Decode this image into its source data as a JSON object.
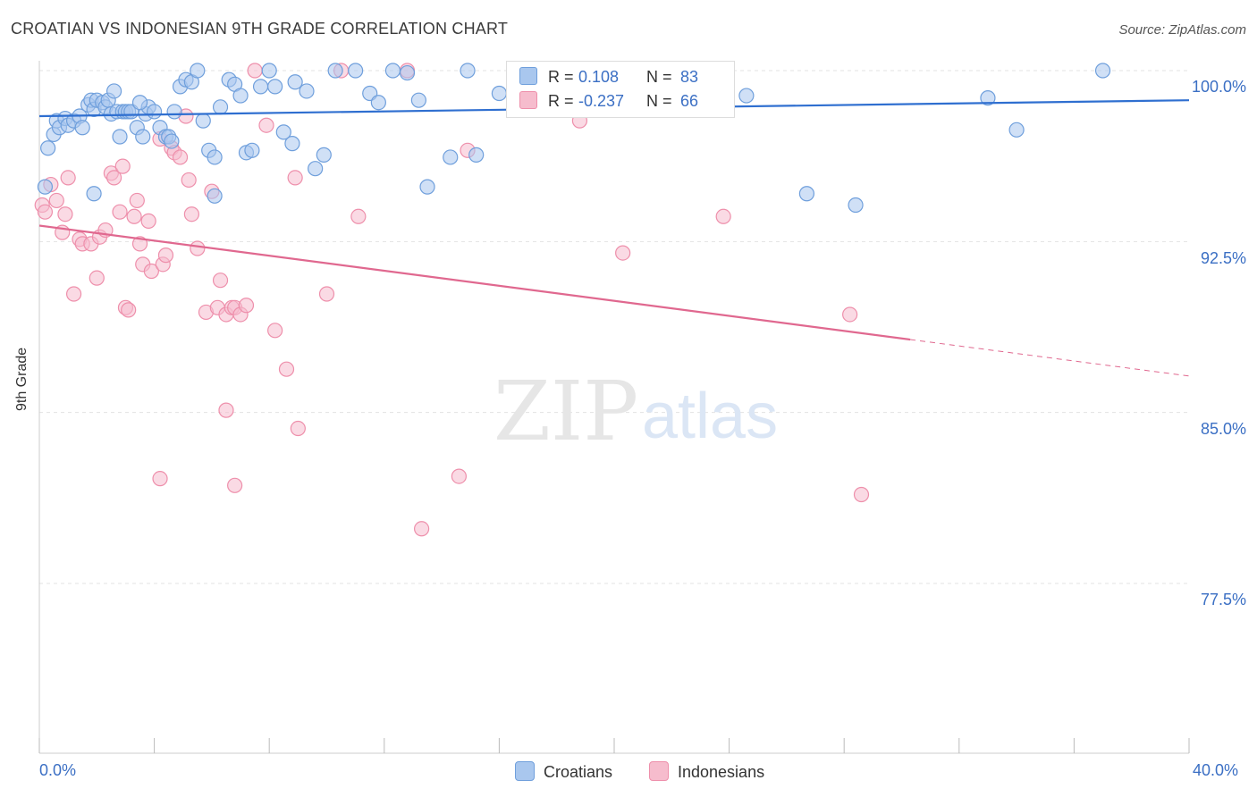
{
  "title": "CROATIAN VS INDONESIAN 9TH GRADE CORRELATION CHART",
  "source": "Source: ZipAtlas.com",
  "watermark": {
    "zip": "ZIP",
    "atlas": "atlas"
  },
  "colors": {
    "blue_fill": "#a9c7ee",
    "blue_stroke": "#6f9fdc",
    "blue_line": "#2f6fd0",
    "pink_fill": "#f6bccd",
    "pink_stroke": "#ee8fab",
    "pink_line": "#e0688f",
    "accent_text": "#3b6fc4",
    "grid": "#e3e3e3"
  },
  "legend": {
    "rows": [
      {
        "r_label": "R =",
        "r_value": "0.108",
        "n_label": "N =",
        "n_value": "83",
        "color": "#a9c7ee"
      },
      {
        "r_label": "R =",
        "r_value": "-0.237",
        "n_label": "N =",
        "n_value": "66",
        "color": "#f6bccd"
      }
    ]
  },
  "bottom_legend": [
    {
      "label": "Croatians",
      "color": "#a9c7ee"
    },
    {
      "label": "Indonesians",
      "color": "#f6bccd"
    }
  ],
  "chart_data": {
    "type": "scatter",
    "title": "CROATIAN VS INDONESIAN 9TH GRADE CORRELATION CHART",
    "xlabel": "",
    "ylabel": "9th Grade",
    "xlim": [
      0,
      40
    ],
    "ylim": [
      70.5,
      101.5
    ],
    "x_tick_labels": [
      {
        "value": 0,
        "label": "0.0%"
      },
      {
        "value": 40,
        "label": "40.0%"
      }
    ],
    "y_tick_labels": [
      {
        "value": 100,
        "label": "100.0%"
      },
      {
        "value": 92.5,
        "label": "92.5%"
      },
      {
        "value": 85,
        "label": "85.0%"
      },
      {
        "value": 77.5,
        "label": "77.5%"
      }
    ],
    "grid": true,
    "legend_position": "top-center",
    "series": [
      {
        "name": "Croatians",
        "trend": {
          "x": [
            0,
            40
          ],
          "y": [
            98.0,
            98.7
          ]
        },
        "points": [
          [
            0.3,
            96.6
          ],
          [
            0.5,
            97.2
          ],
          [
            0.6,
            97.8
          ],
          [
            0.7,
            97.5
          ],
          [
            0.9,
            97.9
          ],
          [
            1.0,
            97.6
          ],
          [
            1.2,
            97.8
          ],
          [
            1.4,
            98.0
          ],
          [
            1.5,
            97.5
          ],
          [
            1.7,
            98.5
          ],
          [
            1.8,
            98.7
          ],
          [
            1.9,
            98.3
          ],
          [
            2.0,
            98.7
          ],
          [
            2.2,
            98.6
          ],
          [
            2.3,
            98.4
          ],
          [
            2.4,
            98.7
          ],
          [
            2.5,
            98.1
          ],
          [
            2.6,
            99.1
          ],
          [
            2.7,
            98.2
          ],
          [
            2.8,
            97.1
          ],
          [
            2.9,
            98.2
          ],
          [
            3.0,
            98.2
          ],
          [
            3.1,
            98.2
          ],
          [
            3.2,
            98.2
          ],
          [
            3.4,
            97.5
          ],
          [
            3.6,
            97.1
          ],
          [
            3.7,
            98.1
          ],
          [
            3.8,
            98.4
          ],
          [
            4.0,
            98.2
          ],
          [
            4.2,
            97.5
          ],
          [
            4.4,
            97.1
          ],
          [
            4.5,
            97.1
          ],
          [
            4.7,
            98.2
          ],
          [
            4.9,
            99.3
          ],
          [
            5.1,
            99.6
          ],
          [
            5.3,
            99.5
          ],
          [
            5.5,
            100.0
          ],
          [
            5.7,
            97.8
          ],
          [
            5.9,
            96.5
          ],
          [
            6.1,
            96.2
          ],
          [
            6.3,
            98.4
          ],
          [
            6.6,
            99.6
          ],
          [
            6.8,
            99.4
          ],
          [
            7.0,
            98.9
          ],
          [
            7.2,
            96.4
          ],
          [
            7.4,
            96.5
          ],
          [
            7.7,
            99.3
          ],
          [
            8.0,
            100.0
          ],
          [
            8.2,
            99.3
          ],
          [
            8.5,
            97.3
          ],
          [
            8.9,
            99.5
          ],
          [
            9.3,
            99.1
          ],
          [
            9.6,
            95.7
          ],
          [
            9.9,
            96.3
          ],
          [
            10.3,
            100.0
          ],
          [
            11.0,
            100.0
          ],
          [
            11.5,
            99.0
          ],
          [
            11.8,
            98.6
          ],
          [
            12.3,
            100.0
          ],
          [
            12.8,
            99.9
          ],
          [
            13.2,
            98.7
          ],
          [
            13.5,
            94.9
          ],
          [
            14.3,
            96.2
          ],
          [
            14.9,
            100.0
          ],
          [
            15.2,
            96.3
          ],
          [
            16.0,
            99.0
          ],
          [
            17.0,
            99.2
          ],
          [
            18.0,
            98.9
          ],
          [
            19.0,
            99.1
          ],
          [
            20.0,
            100.0
          ],
          [
            22.0,
            98.6
          ],
          [
            24.6,
            98.9
          ],
          [
            26.7,
            94.6
          ],
          [
            28.4,
            94.1
          ],
          [
            33.0,
            98.8
          ],
          [
            34.0,
            97.4
          ],
          [
            37.0,
            100.0
          ],
          [
            0.2,
            94.9
          ],
          [
            1.9,
            94.6
          ],
          [
            6.1,
            94.5
          ],
          [
            8.8,
            96.8
          ],
          [
            4.6,
            96.9
          ],
          [
            3.5,
            98.6
          ]
        ]
      },
      {
        "name": "Indonesians",
        "trend": {
          "x": [
            0,
            30.3
          ],
          "y": [
            93.2,
            88.2
          ],
          "dashed_to": {
            "x": 40,
            "y": 86.6
          }
        },
        "points": [
          [
            0.1,
            94.1
          ],
          [
            0.2,
            93.8
          ],
          [
            0.4,
            95.0
          ],
          [
            0.6,
            94.3
          ],
          [
            0.8,
            92.9
          ],
          [
            0.9,
            93.7
          ],
          [
            1.0,
            95.3
          ],
          [
            1.2,
            90.2
          ],
          [
            1.4,
            92.6
          ],
          [
            1.5,
            92.4
          ],
          [
            1.8,
            92.4
          ],
          [
            2.0,
            90.9
          ],
          [
            2.1,
            92.7
          ],
          [
            2.3,
            93.0
          ],
          [
            2.5,
            95.5
          ],
          [
            2.6,
            95.3
          ],
          [
            2.8,
            93.8
          ],
          [
            2.9,
            95.8
          ],
          [
            3.0,
            89.6
          ],
          [
            3.1,
            89.5
          ],
          [
            3.3,
            93.6
          ],
          [
            3.4,
            94.3
          ],
          [
            3.5,
            92.4
          ],
          [
            3.6,
            91.5
          ],
          [
            3.8,
            93.4
          ],
          [
            3.9,
            91.2
          ],
          [
            4.2,
            97.0
          ],
          [
            4.3,
            91.5
          ],
          [
            4.4,
            91.9
          ],
          [
            4.6,
            96.6
          ],
          [
            4.7,
            96.4
          ],
          [
            4.9,
            96.2
          ],
          [
            5.1,
            98.0
          ],
          [
            5.2,
            95.2
          ],
          [
            5.3,
            93.7
          ],
          [
            5.5,
            92.2
          ],
          [
            5.8,
            89.4
          ],
          [
            6.0,
            94.7
          ],
          [
            6.2,
            89.6
          ],
          [
            6.3,
            90.8
          ],
          [
            6.5,
            89.3
          ],
          [
            6.7,
            89.6
          ],
          [
            6.8,
            89.6
          ],
          [
            7.0,
            89.3
          ],
          [
            7.2,
            89.7
          ],
          [
            7.5,
            100.0
          ],
          [
            7.9,
            97.6
          ],
          [
            8.2,
            88.6
          ],
          [
            8.6,
            86.9
          ],
          [
            8.9,
            95.3
          ],
          [
            9.0,
            84.3
          ],
          [
            10.0,
            90.2
          ],
          [
            10.5,
            100.0
          ],
          [
            11.1,
            93.6
          ],
          [
            12.8,
            100.0
          ],
          [
            13.3,
            79.9
          ],
          [
            14.6,
            82.2
          ],
          [
            14.9,
            96.5
          ],
          [
            18.8,
            97.8
          ],
          [
            20.3,
            92.0
          ],
          [
            23.8,
            93.6
          ],
          [
            28.2,
            89.3
          ],
          [
            28.6,
            81.4
          ],
          [
            4.2,
            82.1
          ],
          [
            6.8,
            81.8
          ],
          [
            6.5,
            85.1
          ]
        ]
      }
    ]
  }
}
